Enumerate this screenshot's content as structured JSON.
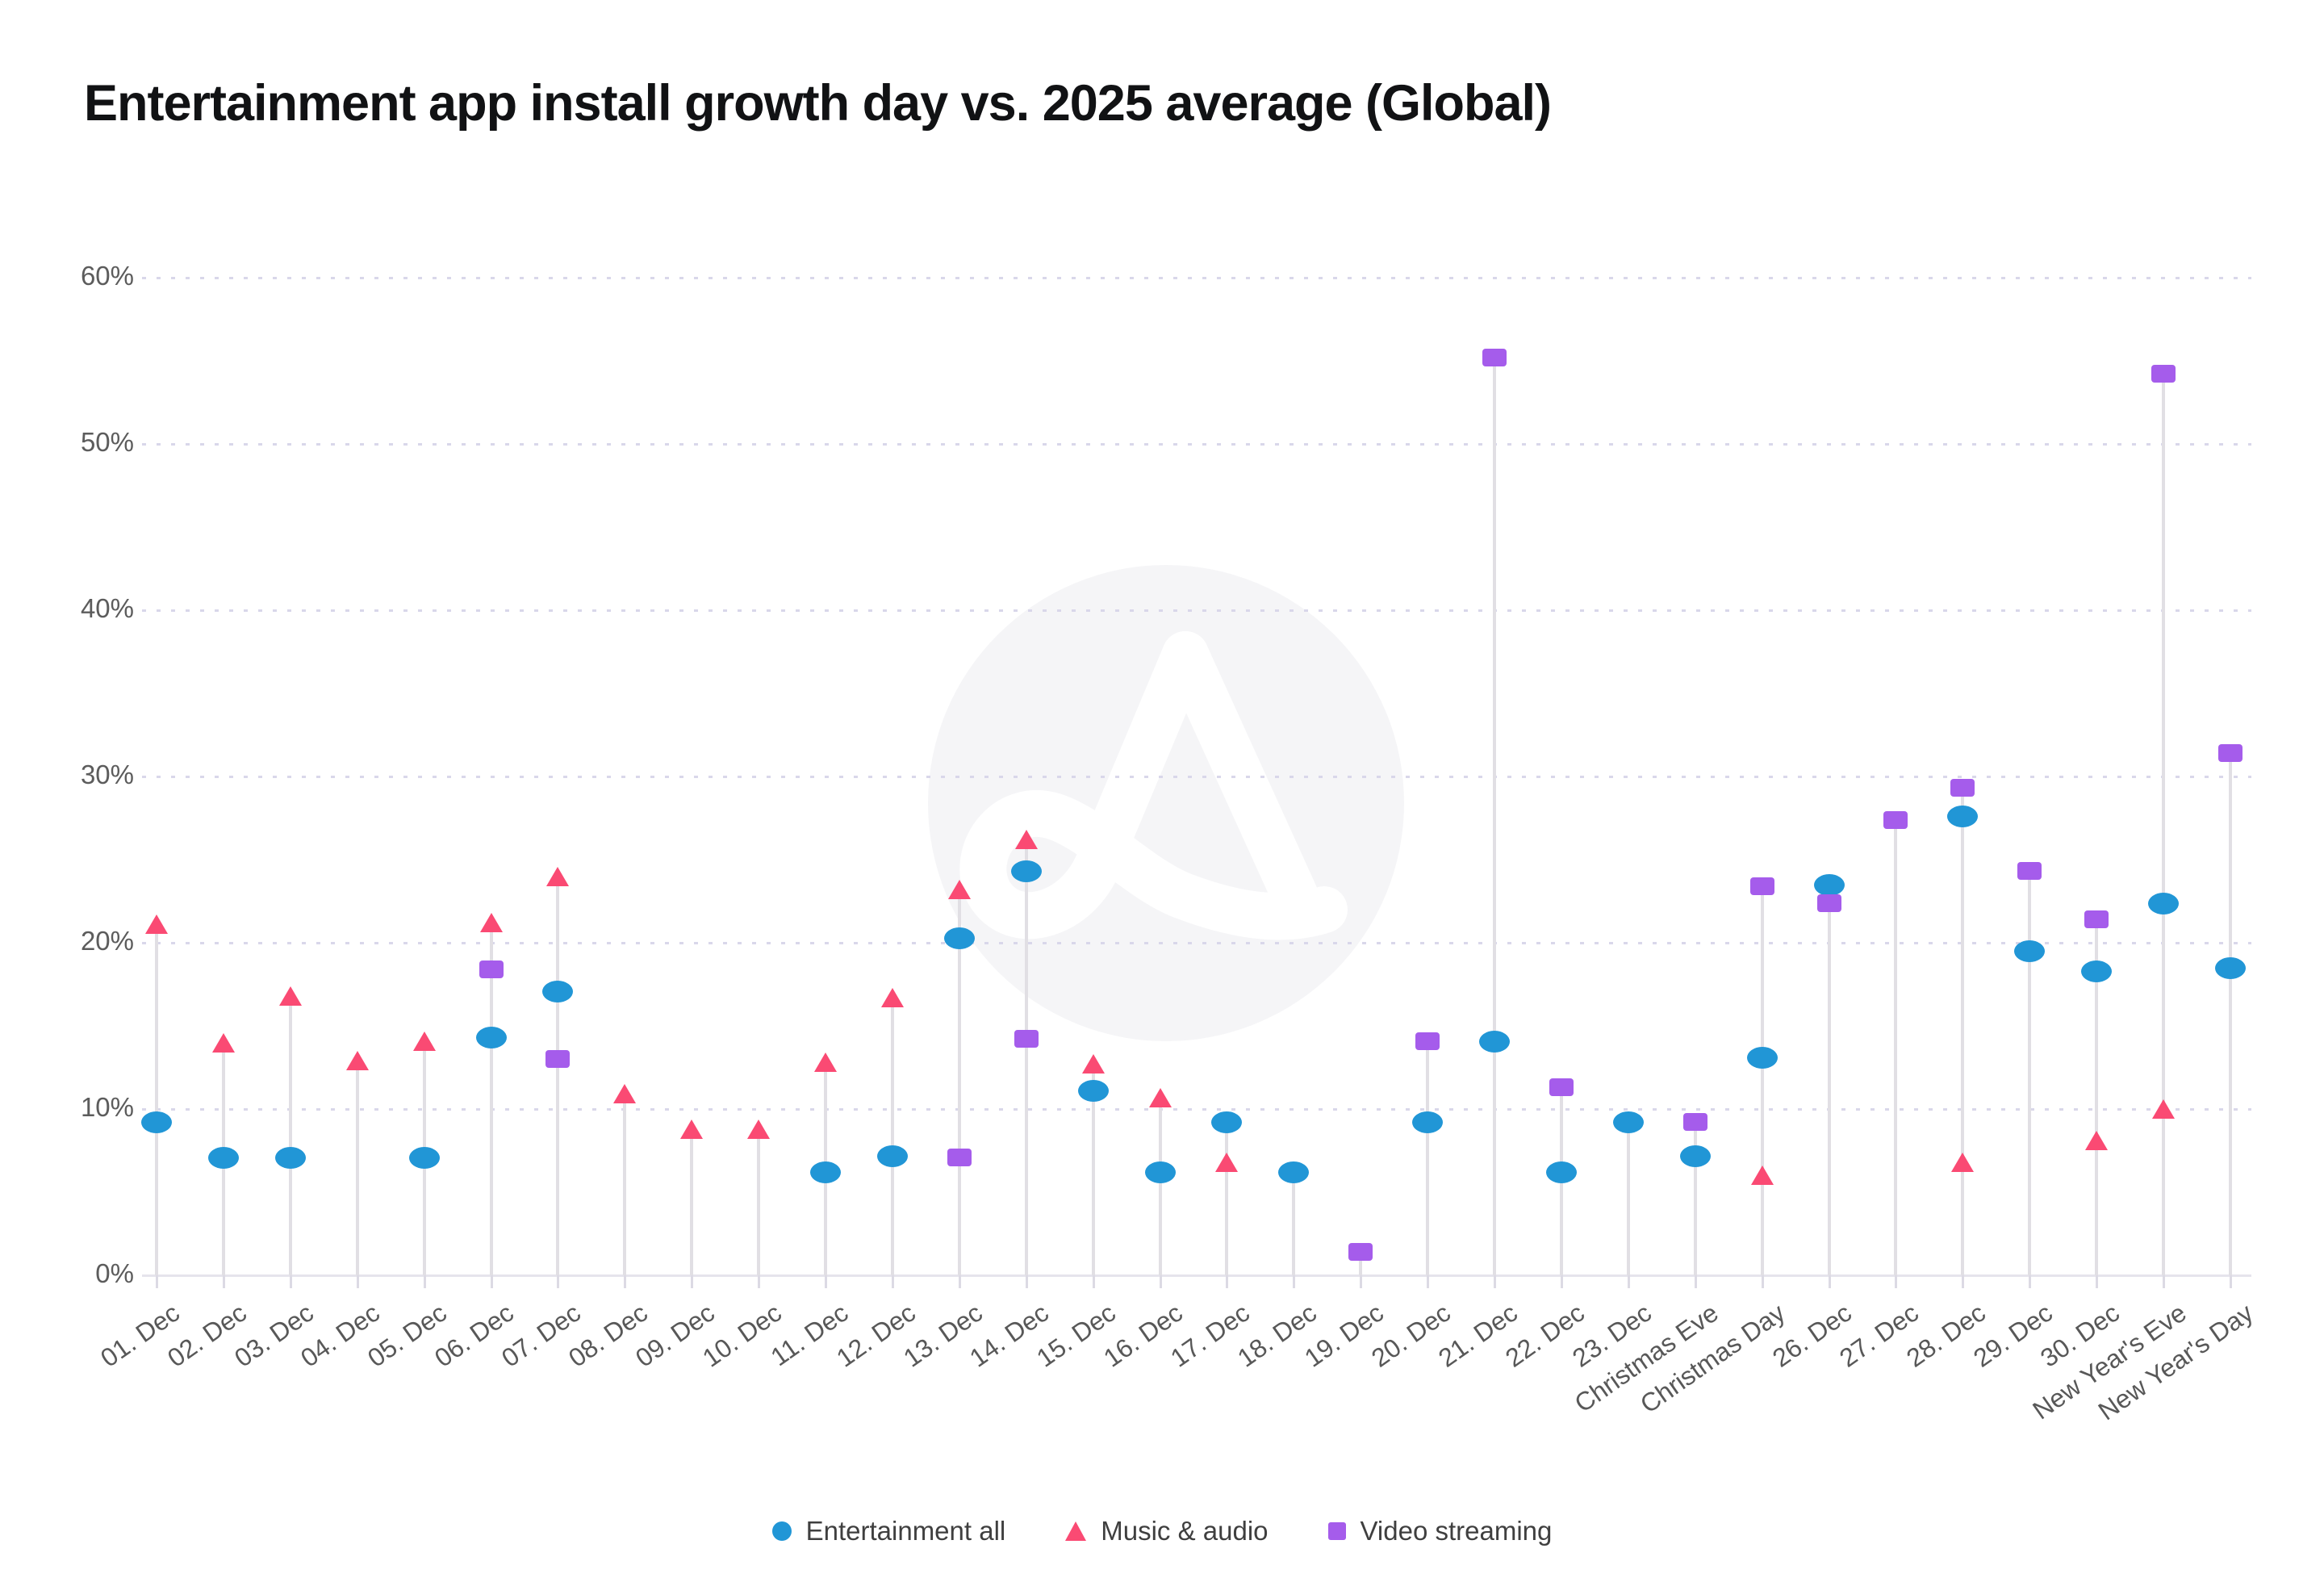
{
  "title": "Entertainment app install growth day vs. 2025 average (Global)",
  "colors": {
    "entertainment_all": "#2196d6",
    "music_audio": "#fa4a73",
    "video_streaming": "#a55ceb",
    "grid": "#d9d7ea",
    "stem": "#e1dfe4",
    "axis": "#e6e4ec",
    "watermark_circle": "#f5f5f7"
  },
  "y_axis": {
    "ticks": [
      "60%",
      "50%",
      "40%",
      "30%",
      "20%",
      "10%",
      "0%"
    ]
  },
  "legend": [
    {
      "label": "Entertainment all",
      "shape": "circle",
      "color": "#2196d6"
    },
    {
      "label": "Music & audio",
      "shape": "triangle",
      "color": "#fa4a73"
    },
    {
      "label": "Video streaming",
      "shape": "square",
      "color": "#a55ceb"
    }
  ],
  "chart_data": {
    "type": "scatter",
    "subtype": "lollipop",
    "title": "Entertainment app install growth day vs. 2025 average (Global)",
    "xlabel": "",
    "ylabel": "",
    "ylim": [
      0,
      60
    ],
    "grid": "horizontal dotted",
    "legend_position": "bottom",
    "categories": [
      "01. Dec",
      "02. Dec",
      "03. Dec",
      "04. Dec",
      "05. Dec",
      "06. Dec",
      "07. Dec",
      "08. Dec",
      "09. Dec",
      "10. Dec",
      "11. Dec",
      "12. Dec",
      "13. Dec",
      "14. Dec",
      "15. Dec",
      "16. Dec",
      "17. Dec",
      "18. Dec",
      "19. Dec",
      "20. Dec",
      "21. Dec",
      "22. Dec",
      "23. Dec",
      "Christmas Eve",
      "Christmas Day",
      "26. Dec",
      "27. Dec",
      "28. Dec",
      "29. Dec",
      "30. Dec",
      "New Year's Eve",
      "New Year's Day"
    ],
    "series": [
      {
        "name": "Entertainment all",
        "marker": "circle",
        "color": "#2196d6",
        "values": [
          9.2,
          7.1,
          7.1,
          null,
          7.1,
          14.3,
          17.1,
          null,
          null,
          null,
          6.2,
          7.2,
          20.3,
          24.3,
          11.1,
          6.2,
          9.2,
          6.2,
          null,
          9.2,
          14.1,
          6.2,
          9.2,
          7.2,
          13.1,
          23.5,
          null,
          27.6,
          19.5,
          18.3,
          22.4,
          18.5
        ]
      },
      {
        "name": "Music & audio",
        "marker": "triangle",
        "color": "#fa4a73",
        "values": [
          21.1,
          14.0,
          16.8,
          12.9,
          14.1,
          21.2,
          24.0,
          10.9,
          8.8,
          8.8,
          12.8,
          16.7,
          23.2,
          26.2,
          12.7,
          10.7,
          6.8,
          null,
          null,
          null,
          null,
          null,
          null,
          null,
          6.0,
          null,
          null,
          6.8,
          null,
          8.1,
          10.0,
          null
        ]
      },
      {
        "name": "Video streaming",
        "marker": "square",
        "color": "#a55ceb",
        "values": [
          null,
          null,
          null,
          null,
          null,
          18.4,
          13.0,
          null,
          null,
          null,
          null,
          null,
          7.1,
          14.2,
          null,
          null,
          null,
          null,
          1.4,
          14.1,
          55.2,
          11.3,
          null,
          9.2,
          23.4,
          22.4,
          27.4,
          29.3,
          24.3,
          21.4,
          54.2,
          31.4
        ]
      }
    ]
  }
}
